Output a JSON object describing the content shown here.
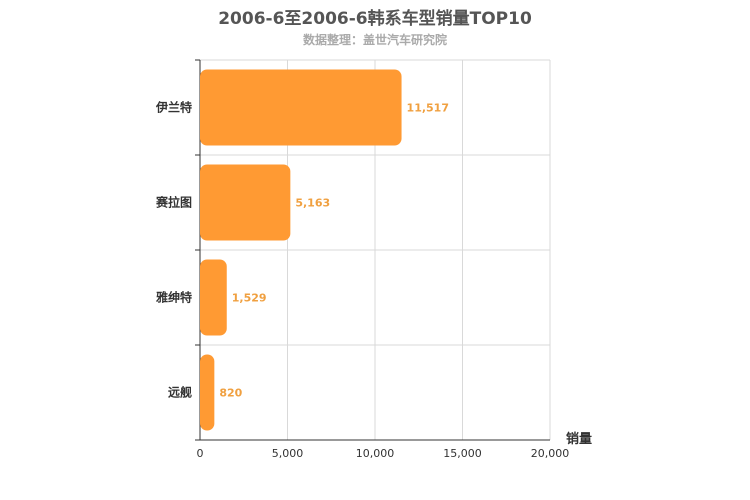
{
  "chart_data": {
    "type": "bar",
    "orientation": "horizontal",
    "title": "2006-6至2006-6韩系车型销量TOP10",
    "subtitle": "数据整理：盖世汽车研究院",
    "categories": [
      "伊兰特",
      "赛拉图",
      "雅绅特",
      "远舰"
    ],
    "values": [
      11517,
      5163,
      1529,
      820
    ],
    "value_labels": [
      "11,517",
      "5,163",
      "1,529",
      "820"
    ],
    "xlabel": "销量",
    "ylabel": "",
    "xlim": [
      0,
      20000
    ],
    "x_ticks": [
      0,
      5000,
      10000,
      15000,
      20000
    ],
    "x_tick_labels": [
      "0",
      "5,000",
      "10,000",
      "15,000",
      "20,000"
    ],
    "grid": true,
    "bar_color": "#ff9a33",
    "label_color": "#f0a040"
  }
}
